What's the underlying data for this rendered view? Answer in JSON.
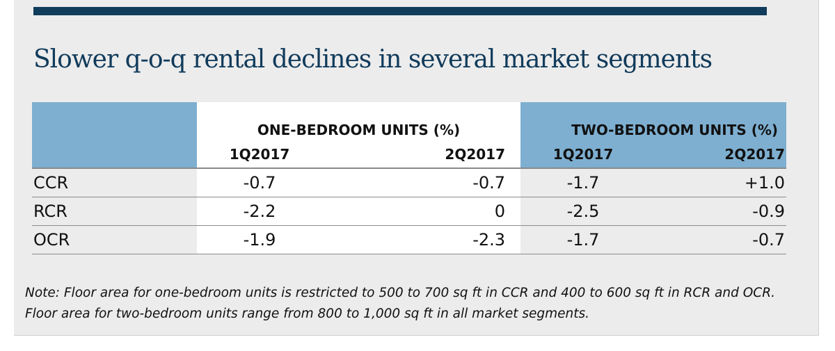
{
  "title": "Slower q-o-q rental declines in several market segments",
  "colors": {
    "brand_navy": "#103c5c",
    "header_blue": "#7eafd0",
    "panel_gray": "#ececec"
  },
  "chart_data": {
    "type": "table",
    "title": "Slower q-o-q rental declines in several market segments",
    "groups": [
      {
        "label": "ONE-BEDROOM UNITS (%)",
        "periods": [
          "1Q2017",
          "2Q2017"
        ]
      },
      {
        "label": "TWO-BEDROOM UNITS (%)",
        "periods": [
          "1Q2017",
          "2Q2017"
        ]
      }
    ],
    "rows": [
      {
        "segment": "CCR",
        "values": [
          "-0.7",
          "-0.7",
          "-1.7",
          "+1.0"
        ]
      },
      {
        "segment": "RCR",
        "values": [
          "-2.2",
          "0",
          "-2.5",
          "-0.9"
        ]
      },
      {
        "segment": "OCR",
        "values": [
          "-1.9",
          "-2.3",
          "-1.7",
          "-0.7"
        ]
      }
    ]
  },
  "note": "Note: Floor area for one-bedroom units is restricted to 500 to 700 sq ft in CCR and 400 to 600 sq ft in RCR and OCR. Floor area for two-bedroom units range from 800 to 1,000 sq ft in all market segments."
}
